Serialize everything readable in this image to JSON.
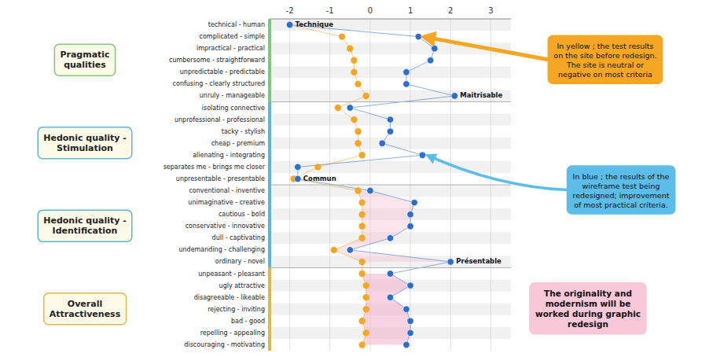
{
  "chart_data": {
    "type": "dot",
    "orientation": "horizontal",
    "grid": true,
    "categories": [
      "technical - human",
      "complicated - simple",
      "impractical - practical",
      "cumbersome - straightforward",
      "unpredictable - predictable",
      "confusing - clearly structured",
      "unruly - manageable",
      "isolating  connective",
      "unprofessional - professional",
      "tacky - stylish",
      "cheap - premium",
      "alienating - integrating",
      "separates me - brings me closer",
      "unpresentable - presentable",
      "conventional - inventive",
      "unimaginative - creative",
      "cautious - bold",
      "conservative - innovative",
      "dull - captivating",
      "undemanding - challenging",
      "ordinary - novel",
      "unpeasant - pleasant",
      "ugly  attractive",
      "disagreeable - likeable",
      "rejecting - inviting",
      "bad - good",
      "repelling - appealing",
      "discouraging - motivating"
    ],
    "series": [
      {
        "color": "#f5a623",
        "values": [
          -2.0,
          -0.7,
          -0.5,
          -0.4,
          -0.4,
          -0.3,
          -0.1,
          -0.8,
          -0.4,
          -0.3,
          -0.3,
          -0.2,
          -1.3,
          -1.9,
          -0.3,
          -0.2,
          -0.2,
          -0.2,
          -0.2,
          -0.9,
          -0.2,
          -0.2,
          -0.1,
          -0.1,
          -0.1,
          -0.2,
          -0.1,
          -0.2
        ]
      },
      {
        "color": "#2a6fcd",
        "values": [
          -2.0,
          1.2,
          1.6,
          1.5,
          0.9,
          0.9,
          2.1,
          -0.5,
          0.5,
          0.5,
          0.3,
          1.3,
          -1.8,
          -1.8,
          0.0,
          1.1,
          1.0,
          1.0,
          0.5,
          -0.5,
          2.0,
          0.5,
          1.0,
          0.5,
          0.9,
          1.0,
          1.0,
          0.9
        ]
      }
    ],
    "xlim": [
      -2.5,
      3.5
    ],
    "xticks": [
      -2,
      -1,
      0,
      1,
      2,
      3
    ],
    "sections": [
      {
        "name": "Pragmatic\nqualities",
        "color": "#7ec87e",
        "from": "technical - human",
        "to": "unruly - manageable"
      },
      {
        "name": "Hedonic quality -\nStimulation",
        "color": "#5bb8d4",
        "from": "isolating  connective",
        "to": "unpresentable - presentable"
      },
      {
        "name": "Hedonic quality -\nIdentification",
        "color": "#5bb8d4",
        "from": "conventional - inventive",
        "to": "ordinary - novel",
        "fill_color": "#f4b8ce"
      },
      {
        "name": "Overall\nAttractiveness",
        "color": "#e0b84a",
        "from": "unpeasant - pleasant",
        "to": "discouraging - motivating",
        "fill_color": "#f4b8ce"
      }
    ],
    "annotations": [
      {
        "text": "Technique",
        "category": "technical - human"
      },
      {
        "text": "Maitrisable",
        "category": "unruly - manageable"
      },
      {
        "text": "Commun",
        "category": "unpresentable - presentable"
      },
      {
        "text": "Présentable",
        "category": "ordinary - novel"
      }
    ],
    "callouts": [
      {
        "text": "In yellow ; the test results\non the site before redesign.\nThe site is neutral or\nnegative on most criteria",
        "color": "#f5a623",
        "points_to": "complicated - simple"
      },
      {
        "text": "In blue ; the results of the\nwireframe test being\nredesigned; improvement\nof most practical criteria.",
        "color": "#5bbde8",
        "points_to": "alienating - integrating"
      },
      {
        "text": "The originality and\nmodernism will be\nworked during graphic\nredesign",
        "color": "#f8c8d8"
      }
    ]
  }
}
